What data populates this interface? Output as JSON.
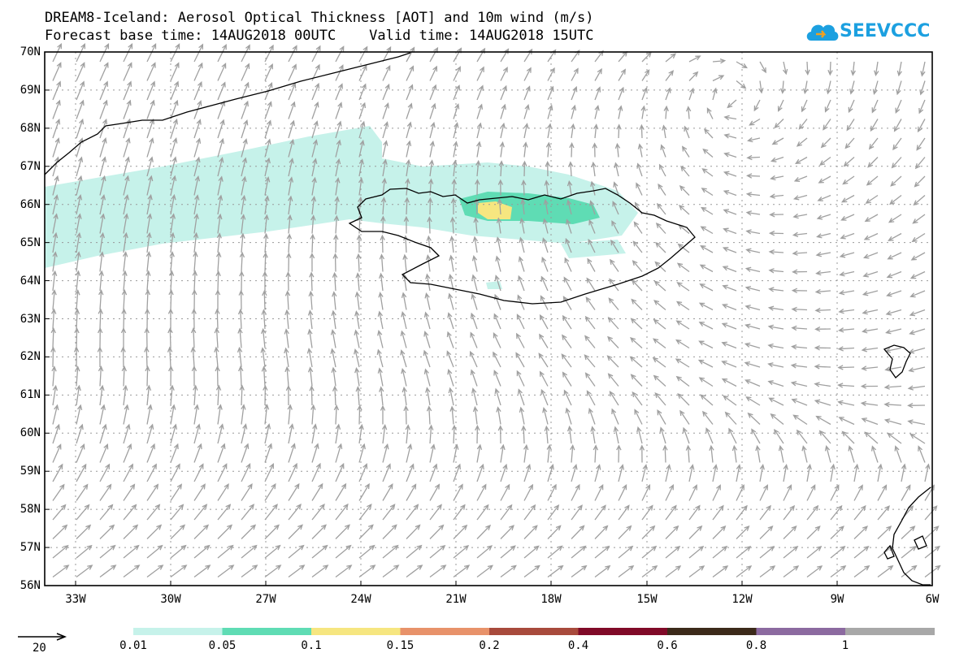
{
  "header": {
    "line1": "DREAM8-Iceland: Aerosol Optical Thickness [AOT] and 10m wind (m/s)",
    "line2": "Forecast base time: 14AUG2018 00UTC    Valid time: 14AUG2018 15UTC"
  },
  "logo": {
    "text": "SEEVCCC",
    "color": "#1ca0e0"
  },
  "map": {
    "lat_labels": [
      "70N",
      "69N",
      "68N",
      "67N",
      "66N",
      "65N",
      "64N",
      "63N",
      "62N",
      "61N",
      "60N",
      "59N",
      "58N",
      "57N",
      "56N"
    ],
    "lon_labels": [
      "33W",
      "30W",
      "27W",
      "24W",
      "21W",
      "18W",
      "15W",
      "12W",
      "9W",
      "6W"
    ],
    "arrow_color": "#a0a0a0",
    "coast_color": "#000000"
  },
  "colorbar": {
    "labels": [
      "0.01",
      "0.05",
      "0.1",
      "0.15",
      "0.2",
      "0.4",
      "0.6",
      "0.8",
      "1"
    ],
    "colors": [
      "#c6f2ea",
      "#5fdcb4",
      "#f6e680",
      "#e8926a",
      "#a84a3c",
      "#800a28",
      "#3c2a1a",
      "#8c6aa0",
      "#a8a8a8"
    ]
  },
  "wind_reference": {
    "label": "20"
  }
}
